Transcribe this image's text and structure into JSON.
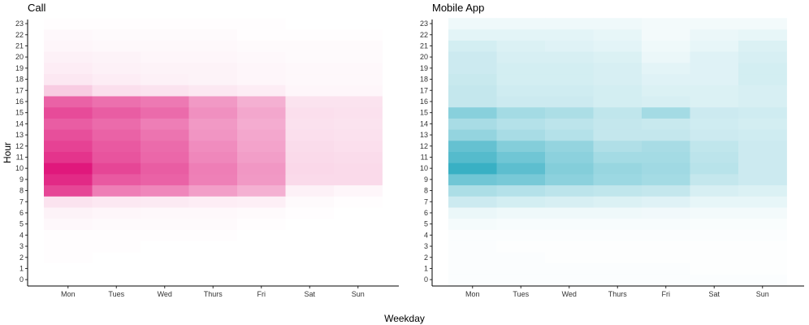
{
  "chart_data": {
    "type": "heatmap",
    "xlabel": "Weekday",
    "ylabel": "Hour",
    "x_categories": [
      "Mon",
      "Tues",
      "Wed",
      "Thurs",
      "Fri",
      "Sat",
      "Sun"
    ],
    "y_categories": [
      "0",
      "1",
      "2",
      "3",
      "4",
      "5",
      "6",
      "7",
      "8",
      "9",
      "10",
      "11",
      "12",
      "13",
      "14",
      "15",
      "16",
      "17",
      "18",
      "19",
      "20",
      "21",
      "22",
      "23"
    ],
    "legend": "none",
    "grid": false,
    "panels": [
      {
        "title": "Call",
        "color": "#e0187c",
        "intensity": [
          [
            0.0,
            0.0,
            0.0,
            0.0,
            0.0,
            0.0,
            0.0
          ],
          [
            0.0,
            0.0,
            0.0,
            0.0,
            0.0,
            0.0,
            0.0
          ],
          [
            0.01,
            0.0,
            0.0,
            0.0,
            0.0,
            0.0,
            0.0
          ],
          [
            0.01,
            0.01,
            0.0,
            0.0,
            0.0,
            0.0,
            0.0
          ],
          [
            0.01,
            0.01,
            0.01,
            0.01,
            0.0,
            0.0,
            0.0
          ],
          [
            0.03,
            0.02,
            0.02,
            0.02,
            0.01,
            0.0,
            0.0
          ],
          [
            0.05,
            0.04,
            0.03,
            0.03,
            0.02,
            0.01,
            0.0
          ],
          [
            0.12,
            0.1,
            0.09,
            0.08,
            0.07,
            0.02,
            0.01
          ],
          [
            0.8,
            0.56,
            0.52,
            0.42,
            0.34,
            0.06,
            0.04
          ],
          [
            0.92,
            0.72,
            0.68,
            0.55,
            0.44,
            0.16,
            0.16
          ],
          [
            1.0,
            0.8,
            0.7,
            0.56,
            0.45,
            0.17,
            0.16
          ],
          [
            0.88,
            0.74,
            0.66,
            0.52,
            0.42,
            0.16,
            0.15
          ],
          [
            0.82,
            0.72,
            0.64,
            0.5,
            0.4,
            0.15,
            0.14
          ],
          [
            0.76,
            0.68,
            0.6,
            0.46,
            0.38,
            0.14,
            0.13
          ],
          [
            0.7,
            0.64,
            0.56,
            0.44,
            0.36,
            0.13,
            0.12
          ],
          [
            0.78,
            0.7,
            0.64,
            0.48,
            0.38,
            0.14,
            0.13
          ],
          [
            0.68,
            0.62,
            0.58,
            0.44,
            0.34,
            0.12,
            0.12
          ],
          [
            0.22,
            0.14,
            0.12,
            0.1,
            0.08,
            0.04,
            0.04
          ],
          [
            0.1,
            0.08,
            0.06,
            0.05,
            0.04,
            0.03,
            0.03
          ],
          [
            0.08,
            0.06,
            0.05,
            0.05,
            0.04,
            0.03,
            0.03
          ],
          [
            0.06,
            0.05,
            0.04,
            0.04,
            0.03,
            0.02,
            0.02
          ],
          [
            0.04,
            0.03,
            0.03,
            0.03,
            0.02,
            0.02,
            0.02
          ],
          [
            0.03,
            0.02,
            0.02,
            0.02,
            0.01,
            0.01,
            0.01
          ],
          [
            0.01,
            0.01,
            0.01,
            0.01,
            0.01,
            0.0,
            0.0
          ]
        ]
      },
      {
        "title": "Mobile App",
        "color": "#39b0c4",
        "intensity": [
          [
            0.02,
            0.02,
            0.02,
            0.02,
            0.02,
            0.02,
            0.02
          ],
          [
            0.02,
            0.02,
            0.02,
            0.02,
            0.02,
            0.01,
            0.01
          ],
          [
            0.02,
            0.02,
            0.01,
            0.01,
            0.01,
            0.01,
            0.01
          ],
          [
            0.02,
            0.01,
            0.01,
            0.01,
            0.01,
            0.01,
            0.01
          ],
          [
            0.02,
            0.02,
            0.02,
            0.02,
            0.02,
            0.02,
            0.02
          ],
          [
            0.05,
            0.04,
            0.04,
            0.04,
            0.04,
            0.03,
            0.03
          ],
          [
            0.1,
            0.08,
            0.08,
            0.08,
            0.07,
            0.06,
            0.06
          ],
          [
            0.26,
            0.22,
            0.2,
            0.18,
            0.16,
            0.12,
            0.12
          ],
          [
            0.42,
            0.38,
            0.34,
            0.32,
            0.3,
            0.2,
            0.18
          ],
          [
            0.72,
            0.68,
            0.58,
            0.5,
            0.46,
            0.3,
            0.26
          ],
          [
            1.0,
            0.82,
            0.62,
            0.52,
            0.48,
            0.36,
            0.26
          ],
          [
            0.86,
            0.72,
            0.58,
            0.46,
            0.46,
            0.34,
            0.26
          ],
          [
            0.78,
            0.62,
            0.54,
            0.4,
            0.44,
            0.32,
            0.26
          ],
          [
            0.54,
            0.44,
            0.38,
            0.3,
            0.3,
            0.26,
            0.24
          ],
          [
            0.44,
            0.38,
            0.34,
            0.3,
            0.28,
            0.24,
            0.22
          ],
          [
            0.6,
            0.46,
            0.42,
            0.32,
            0.46,
            0.26,
            0.24
          ],
          [
            0.3,
            0.26,
            0.26,
            0.22,
            0.2,
            0.18,
            0.2
          ],
          [
            0.3,
            0.24,
            0.24,
            0.22,
            0.18,
            0.18,
            0.2
          ],
          [
            0.28,
            0.22,
            0.22,
            0.2,
            0.16,
            0.16,
            0.22
          ],
          [
            0.26,
            0.22,
            0.22,
            0.2,
            0.14,
            0.16,
            0.22
          ],
          [
            0.26,
            0.2,
            0.2,
            0.18,
            0.1,
            0.16,
            0.2
          ],
          [
            0.22,
            0.18,
            0.16,
            0.14,
            0.08,
            0.12,
            0.18
          ],
          [
            0.14,
            0.14,
            0.14,
            0.12,
            0.06,
            0.1,
            0.12
          ],
          [
            0.08,
            0.08,
            0.08,
            0.08,
            0.06,
            0.06,
            0.06
          ]
        ]
      }
    ]
  }
}
